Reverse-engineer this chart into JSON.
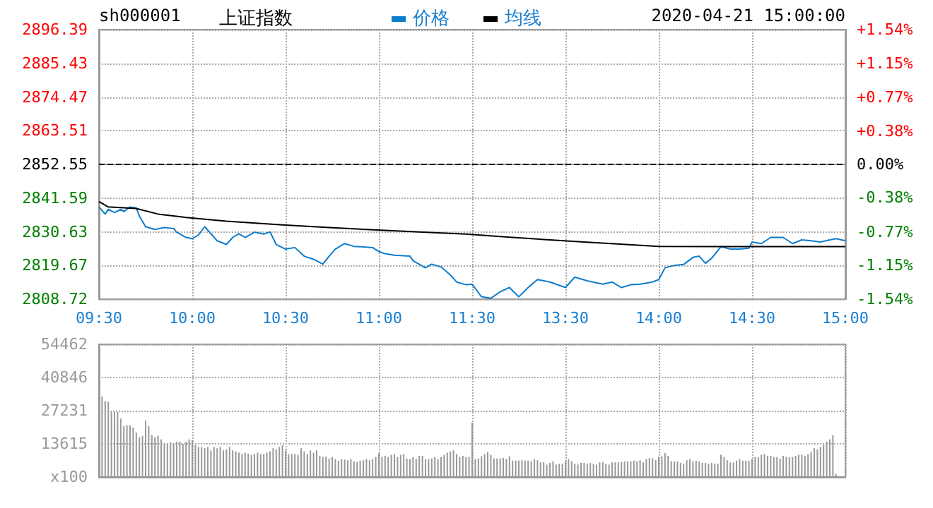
{
  "chart_data": [
    {
      "type": "line",
      "title": "上证指数",
      "annotations": [
        "sh000001",
        "2020-04-21 15:00:00"
      ],
      "categories": [
        "09:30",
        null,
        null,
        null,
        null,
        null,
        null,
        null,
        null,
        null,
        null,
        null,
        null,
        null,
        null,
        null,
        null,
        null,
        null,
        null,
        null,
        null,
        null,
        null,
        null,
        null,
        null,
        null,
        null,
        null,
        "10:00",
        null,
        null,
        null,
        null,
        null,
        null,
        null,
        null,
        null,
        null,
        null,
        null,
        null,
        null,
        null,
        null,
        null,
        null,
        null,
        null,
        null,
        null,
        null,
        null,
        null,
        null,
        null,
        null,
        null,
        "10:30",
        null,
        null,
        null,
        null,
        null,
        null,
        null,
        null,
        null,
        null,
        null,
        null,
        null,
        null,
        null,
        null,
        null,
        null,
        null,
        null,
        null,
        null,
        null,
        null,
        null,
        null,
        null,
        null,
        null,
        "11:00",
        null,
        null,
        null,
        null,
        null,
        null,
        null,
        null,
        null,
        null,
        null,
        null,
        null,
        null,
        null,
        null,
        null,
        null,
        null,
        null,
        null,
        null,
        null,
        null,
        null,
        null,
        null,
        null,
        null,
        "11:30",
        null,
        null,
        null,
        null,
        null,
        null,
        null,
        null,
        null,
        null,
        null,
        null,
        null,
        null,
        null,
        null,
        null,
        null,
        null,
        null,
        null,
        null,
        null,
        null,
        null,
        null,
        null,
        null,
        null,
        "13:30",
        null,
        null,
        null,
        null,
        null,
        null,
        null,
        null,
        null,
        null,
        null,
        null,
        null,
        null,
        null,
        null,
        null,
        null,
        null,
        null,
        null,
        null,
        null,
        null,
        null,
        null,
        null,
        null,
        null,
        "14:00",
        null,
        null,
        null,
        null,
        null,
        null,
        null,
        null,
        null,
        null,
        null,
        null,
        null,
        null,
        null,
        null,
        null,
        null,
        null,
        null,
        null,
        null,
        null,
        null,
        null,
        null,
        null,
        null,
        null,
        "14:30",
        null,
        null,
        null,
        null,
        null,
        null,
        null,
        null,
        null,
        null,
        null,
        null,
        null,
        null,
        null,
        null,
        null,
        null,
        null,
        null,
        null,
        null,
        null,
        null,
        null,
        null,
        null,
        null,
        null,
        "15:00"
      ],
      "ylim": [
        2808.72,
        2896.39
      ],
      "yticks": [
        2808.72,
        2819.67,
        2830.63,
        2841.59,
        2852.55,
        2863.51,
        2874.47,
        2885.43,
        2896.39
      ],
      "y2lim": [
        -1.54,
        1.54
      ],
      "y2ticks": [
        {
          "value": -1.54,
          "label": "-1.54%"
        },
        {
          "value": -1.15,
          "label": "-1.15%"
        },
        {
          "value": -0.77,
          "label": "-0.77%"
        },
        {
          "value": -0.38,
          "label": "-0.38%"
        },
        {
          "value": 0,
          "label": "0.00%"
        },
        {
          "value": 0.38,
          "label": "+0.38%"
        },
        {
          "value": 0.77,
          "label": "+0.77%"
        },
        {
          "value": 1.15,
          "label": "+1.15%"
        },
        {
          "value": 1.54,
          "label": "+1.54%"
        }
      ],
      "series": [
        {
          "name": "价格",
          "color": "#0e7ccc",
          "values": [
            2838.7,
            null,
            2836.4,
            2837.9,
            null,
            2836.9,
            null,
            2837.9,
            2837.2,
            null,
            2838.7,
            null,
            2838.4,
            2835.7,
            null,
            2832.3,
            null,
            null,
            2831.4,
            null,
            null,
            2832.0,
            null,
            null,
            2831.7,
            2830.5,
            null,
            null,
            2828.8,
            null,
            2828.4,
            null,
            2829.6,
            null,
            2832.3,
            null,
            2830.0,
            null,
            2827.7,
            null,
            null,
            2826.5,
            null,
            2828.8,
            null,
            2830.0,
            null,
            2828.8,
            null,
            null,
            2830.5,
            null,
            null,
            2829.9,
            null,
            2830.6,
            null,
            2826.5,
            null,
            null,
            2825.0,
            null,
            null,
            2825.5,
            null,
            null,
            2822.7,
            null,
            null,
            2821.7,
            null,
            null,
            2820.1,
            null,
            2822.7,
            null,
            2825.0,
            null,
            null,
            2826.8,
            null,
            null,
            2825.9,
            null,
            null,
            null,
            null,
            null,
            2825.5,
            null,
            2824.2,
            null,
            2823.5,
            null,
            null,
            2823.0,
            null,
            null,
            null,
            null,
            2822.7,
            2821.2,
            null,
            null,
            null,
            2818.9,
            null,
            2820.1,
            null,
            null,
            2819.2,
            null,
            null,
            2816.6,
            null,
            2814.3,
            null,
            null,
            2813.4,
            null,
            2813.6,
            null,
            null,
            2809.5,
            null,
            null,
            2809.0,
            null,
            null,
            2811.1,
            null,
            null,
            2812.5,
            null,
            2810.5,
            2809.5,
            null,
            null,
            2812.5,
            null,
            null,
            2815.1,
            null,
            null,
            null,
            2814.3,
            null,
            null,
            null,
            null,
            2812.5,
            null,
            null,
            2815.9,
            null,
            null,
            null,
            2814.7,
            null,
            null,
            null,
            null,
            2813.6,
            null,
            null,
            2814.3,
            null,
            null,
            2812.5,
            null,
            null,
            2813.4,
            null,
            null,
            2813.6,
            null,
            null,
            null,
            2814.3,
            null,
            2815.1,
            null,
            2818.9,
            null,
            null,
            2819.7,
            null,
            null,
            2820.0,
            null,
            null,
            2822.3,
            null,
            2822.7,
            null,
            2820.4,
            null,
            2822.0,
            null,
            null,
            2825.8,
            null,
            null,
            2825.0,
            null,
            null,
            2825.0,
            null,
            null,
            2825.3,
            2827.3,
            null,
            null,
            2826.8,
            null,
            null,
            2828.8,
            null,
            null,
            null,
            2828.8,
            null,
            null,
            2826.8,
            null,
            null,
            2828.0,
            null,
            null,
            2827.7,
            null,
            null,
            2827.3,
            null,
            null,
            2828.0,
            null,
            2828.4,
            null,
            null,
            2827.7
          ]
        },
        {
          "name": "均线",
          "color": "#000000",
          "values": [
            2840.5,
            null,
            null,
            2838.7,
            null,
            null,
            null,
            null,
            null,
            null,
            null,
            null,
            2838.2,
            null,
            null,
            null,
            null,
            null,
            null,
            2836.4,
            null,
            null,
            null,
            null,
            null,
            null,
            null,
            null,
            2835.3,
            null,
            null,
            null,
            null,
            null,
            null,
            null,
            null,
            null,
            null,
            null,
            null,
            2834.1,
            null,
            null,
            null,
            null,
            null,
            null,
            null,
            null,
            null,
            null,
            null,
            null,
            null,
            null,
            null,
            null,
            null,
            2832.9,
            null,
            null,
            null,
            null,
            null,
            null,
            null,
            null,
            null,
            null,
            null,
            null,
            null,
            null,
            2832.0,
            null,
            null,
            null,
            null,
            null,
            null,
            null,
            null,
            null,
            null,
            null,
            null,
            null,
            null,
            null,
            null,
            null,
            2831.1,
            null,
            null,
            null,
            null,
            null,
            null,
            null,
            null,
            null,
            null,
            null,
            null,
            null,
            null,
            null,
            null,
            2830.3,
            null,
            null,
            null,
            null,
            null,
            null,
            null,
            null,
            2829.9,
            null,
            null,
            null,
            null,
            null,
            null,
            null,
            null,
            null,
            null,
            null,
            null,
            null,
            null,
            2828.8,
            null,
            null,
            null,
            null,
            null,
            null,
            null,
            null,
            null,
            null,
            null,
            null,
            null,
            null,
            null,
            null,
            null,
            null,
            null,
            null,
            null,
            null,
            2827.3,
            null,
            null,
            null,
            null,
            null,
            null,
            null,
            null,
            null,
            null,
            null,
            null,
            null,
            null,
            null,
            null,
            null,
            null,
            null,
            null,
            null,
            null,
            null,
            2825.9,
            null,
            null,
            null,
            null,
            null,
            null,
            null,
            null,
            null,
            null,
            null,
            null,
            null,
            null,
            null,
            null,
            null,
            null,
            null,
            null,
            null,
            null,
            null,
            null,
            null,
            null,
            null,
            null,
            2825.8,
            null,
            null,
            null,
            null,
            null,
            null,
            null,
            null,
            null,
            null,
            null,
            null,
            null,
            null,
            null,
            null,
            null,
            null,
            null,
            null,
            null,
            null,
            null,
            null,
            null,
            null,
            null,
            null,
            null,
            null,
            2825.8
          ]
        }
      ],
      "ref_lines": [
        {
          "axis": "y",
          "value": 2852.55,
          "color": "#000000",
          "line_style": "dashed"
        }
      ],
      "grid": true,
      "legend": "top",
      "marker": "none",
      "line_style": "solid"
    },
    {
      "type": "bar",
      "color": "#999999",
      "categories": [
        null,
        null,
        null,
        null,
        null,
        null,
        null,
        null,
        null,
        null,
        null,
        null,
        null,
        null,
        null,
        null,
        null,
        null,
        null,
        null,
        null,
        null,
        null,
        null,
        null,
        null,
        null,
        null,
        null,
        null,
        null,
        null,
        null,
        null,
        null,
        null,
        null,
        null,
        null,
        null,
        null,
        null,
        null,
        null,
        null,
        null,
        null,
        null,
        null,
        null,
        null,
        null,
        null,
        null,
        null,
        null,
        null,
        null,
        null,
        null,
        null,
        null,
        null,
        null,
        null,
        null,
        null,
        null,
        null,
        null,
        null,
        null,
        null,
        null,
        null,
        null,
        null,
        null,
        null,
        null,
        null,
        null,
        null,
        null,
        null,
        null,
        null,
        null,
        null,
        null,
        null,
        null,
        null,
        null,
        null,
        null,
        null,
        null,
        null,
        null,
        null,
        null,
        null,
        null,
        null,
        null,
        null,
        null,
        null,
        null,
        null,
        null,
        null,
        null,
        null,
        null,
        null,
        null,
        null,
        null,
        null,
        null,
        null,
        null,
        null,
        null,
        null,
        null,
        null,
        null,
        null,
        null,
        null,
        null,
        null,
        null,
        null,
        null,
        null,
        null,
        null,
        null,
        null,
        null,
        null,
        null,
        null,
        null,
        null,
        null,
        null,
        null,
        null,
        null,
        null,
        null,
        null,
        null,
        null,
        null,
        null,
        null,
        null,
        null,
        null,
        null,
        null,
        null,
        null,
        null,
        null,
        null,
        null,
        null,
        null,
        null,
        null,
        null,
        null,
        null,
        null,
        null,
        null,
        null,
        null,
        null,
        null,
        null,
        null,
        null,
        null,
        null,
        null,
        null,
        null,
        null,
        null,
        null,
        null,
        null,
        null,
        null,
        null,
        null,
        null,
        null,
        null,
        null,
        null,
        null,
        null,
        null,
        null,
        null,
        null,
        null,
        null,
        null,
        null,
        null,
        null,
        null,
        null,
        null,
        null,
        null,
        null,
        null,
        null,
        null,
        null,
        null,
        null,
        null,
        null,
        null,
        null,
        null,
        null,
        null,
        null
      ],
      "values": [
        54462,
        33000,
        31200,
        30900,
        26700,
        26700,
        26700,
        24000,
        20900,
        21200,
        21200,
        20300,
        18200,
        16300,
        16900,
        23200,
        20900,
        17200,
        16300,
        16900,
        15400,
        13600,
        13600,
        14200,
        13600,
        14500,
        14500,
        13600,
        14500,
        15400,
        15100,
        13100,
        12300,
        12300,
        11800,
        12300,
        10900,
        12300,
        11800,
        12300,
        10900,
        11300,
        12300,
        10900,
        10500,
        10000,
        9400,
        10000,
        9600,
        9100,
        9400,
        10000,
        9400,
        9400,
        10000,
        10500,
        11800,
        11300,
        12300,
        13100,
        10900,
        9400,
        9400,
        9400,
        9100,
        11800,
        10500,
        9400,
        10900,
        10000,
        10900,
        8700,
        8200,
        8300,
        7600,
        8200,
        7300,
        6700,
        7300,
        7100,
        6900,
        7300,
        6400,
        6200,
        6700,
        6900,
        7300,
        6900,
        7300,
        8200,
        9800,
        8200,
        8700,
        8200,
        9100,
        9400,
        8200,
        9100,
        9400,
        7600,
        7300,
        8200,
        7300,
        8700,
        8700,
        7300,
        7300,
        7600,
        8200,
        7300,
        8200,
        9100,
        10000,
        10500,
        10900,
        9400,
        8200,
        8700,
        8200,
        8200,
        22300,
        7300,
        7600,
        8500,
        9400,
        10300,
        9100,
        7600,
        7600,
        7600,
        7800,
        7300,
        8500,
        6700,
        6700,
        6700,
        6900,
        6700,
        6700,
        6400,
        7300,
        6900,
        6000,
        6000,
        5100,
        5800,
        6400,
        5100,
        5400,
        5400,
        6700,
        7300,
        6400,
        5400,
        5100,
        5800,
        5800,
        5400,
        5800,
        5400,
        5100,
        6000,
        6000,
        5400,
        5100,
        6000,
        6000,
        6000,
        6200,
        6400,
        6400,
        6400,
        6700,
        6400,
        6900,
        6000,
        7300,
        7800,
        7600,
        6900,
        8200,
        8500,
        9800,
        8700,
        6400,
        6400,
        6400,
        5800,
        5400,
        6900,
        7300,
        6400,
        6700,
        6400,
        5800,
        5800,
        5400,
        5800,
        5400,
        5400,
        9100,
        8200,
        6900,
        6000,
        6000,
        6700,
        7300,
        6700,
        6700,
        6700,
        7300,
        8200,
        8200,
        9100,
        9400,
        8700,
        8700,
        8200,
        8200,
        7600,
        8700,
        8200,
        8000,
        8200,
        8700,
        9100,
        9100,
        8700,
        9400,
        10300,
        11800,
        11300,
        12300,
        13100,
        14500,
        15400,
        17200,
        1300,
        null,
        null,
        null
      ],
      "ylim": [
        0,
        54462
      ],
      "yticks": [
        {
          "value": 0,
          "label": "x100"
        },
        13615,
        27231,
        40846,
        54462
      ],
      "grid": true,
      "tick_labels": "y"
    }
  ]
}
